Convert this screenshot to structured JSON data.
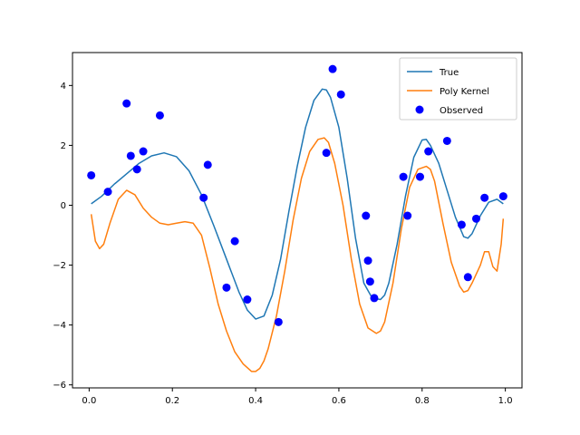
{
  "chart_data": {
    "type": "line",
    "title": "",
    "xlabel": "",
    "ylabel": "",
    "xlim": [
      -0.04,
      1.04
    ],
    "ylim": [
      -6.1,
      5.1
    ],
    "xticks": [
      0.0,
      0.2,
      0.4,
      0.6,
      0.8,
      1.0
    ],
    "xtick_labels": [
      "0.0",
      "0.2",
      "0.4",
      "0.6",
      "0.8",
      "1.0"
    ],
    "yticks": [
      -6,
      -4,
      -2,
      0,
      2,
      4
    ],
    "ytick_labels": [
      "−6",
      "−4",
      "−2",
      "0",
      "2",
      "4"
    ],
    "grid": false,
    "legend_position": "top-right",
    "series": [
      {
        "name": "True",
        "kind": "line",
        "color": "#1f77b4",
        "x": [
          0.005,
          0.03,
          0.06,
          0.09,
          0.12,
          0.15,
          0.18,
          0.21,
          0.24,
          0.27,
          0.3,
          0.33,
          0.36,
          0.38,
          0.4,
          0.42,
          0.44,
          0.46,
          0.48,
          0.5,
          0.52,
          0.54,
          0.56,
          0.57,
          0.58,
          0.6,
          0.62,
          0.64,
          0.66,
          0.68,
          0.7,
          0.71,
          0.72,
          0.74,
          0.76,
          0.78,
          0.8,
          0.81,
          0.82,
          0.84,
          0.86,
          0.88,
          0.9,
          0.91,
          0.92,
          0.94,
          0.96,
          0.98,
          0.995
        ],
        "y": [
          0.05,
          0.3,
          0.7,
          1.05,
          1.4,
          1.65,
          1.75,
          1.62,
          1.15,
          0.35,
          -0.7,
          -1.8,
          -2.9,
          -3.5,
          -3.8,
          -3.7,
          -3.0,
          -1.8,
          -0.2,
          1.3,
          2.6,
          3.5,
          3.88,
          3.85,
          3.6,
          2.6,
          0.9,
          -1.1,
          -2.6,
          -3.1,
          -3.15,
          -3.0,
          -2.6,
          -1.3,
          0.3,
          1.6,
          2.18,
          2.2,
          2.0,
          1.4,
          0.5,
          -0.4,
          -1.05,
          -1.1,
          -0.95,
          -0.35,
          0.1,
          0.2,
          0.05
        ]
      },
      {
        "name": "Poly Kernel",
        "kind": "line",
        "color": "#ff7f0e",
        "x": [
          0.005,
          0.015,
          0.025,
          0.035,
          0.05,
          0.07,
          0.09,
          0.11,
          0.13,
          0.15,
          0.17,
          0.19,
          0.21,
          0.23,
          0.25,
          0.27,
          0.29,
          0.31,
          0.33,
          0.35,
          0.37,
          0.39,
          0.4,
          0.41,
          0.42,
          0.43,
          0.45,
          0.47,
          0.49,
          0.51,
          0.53,
          0.55,
          0.565,
          0.575,
          0.59,
          0.61,
          0.63,
          0.65,
          0.67,
          0.69,
          0.7,
          0.71,
          0.73,
          0.75,
          0.77,
          0.79,
          0.81,
          0.82,
          0.83,
          0.85,
          0.87,
          0.89,
          0.9,
          0.91,
          0.92,
          0.94,
          0.95,
          0.96,
          0.97,
          0.98,
          0.99,
          0.995
        ],
        "y": [
          -0.3,
          -1.2,
          -1.45,
          -1.3,
          -0.6,
          0.2,
          0.5,
          0.35,
          -0.1,
          -0.4,
          -0.6,
          -0.65,
          -0.6,
          -0.55,
          -0.6,
          -1.0,
          -2.1,
          -3.3,
          -4.2,
          -4.9,
          -5.3,
          -5.55,
          -5.55,
          -5.45,
          -5.2,
          -4.8,
          -3.7,
          -2.2,
          -0.5,
          0.9,
          1.8,
          2.2,
          2.25,
          2.1,
          1.4,
          0.0,
          -1.8,
          -3.3,
          -4.1,
          -4.28,
          -4.2,
          -3.9,
          -2.6,
          -0.8,
          0.6,
          1.2,
          1.3,
          1.2,
          0.8,
          -0.6,
          -1.9,
          -2.7,
          -2.9,
          -2.85,
          -2.6,
          -2.0,
          -1.55,
          -1.55,
          -2.05,
          -2.2,
          -1.3,
          -0.45
        ]
      },
      {
        "name": "Observed",
        "kind": "scatter",
        "color": "#0000ff",
        "x": [
          0.005,
          0.045,
          0.09,
          0.1,
          0.115,
          0.13,
          0.17,
          0.275,
          0.285,
          0.33,
          0.35,
          0.38,
          0.455,
          0.57,
          0.585,
          0.605,
          0.665,
          0.67,
          0.675,
          0.685,
          0.755,
          0.765,
          0.795,
          0.815,
          0.86,
          0.895,
          0.91,
          0.93,
          0.95,
          0.995
        ],
        "y": [
          1.0,
          0.45,
          3.4,
          1.65,
          1.2,
          1.8,
          3.0,
          0.25,
          1.35,
          -2.75,
          -1.2,
          -3.15,
          -3.9,
          1.75,
          4.55,
          3.7,
          -0.35,
          -1.85,
          -2.55,
          -3.1,
          0.95,
          -0.35,
          0.95,
          1.8,
          2.15,
          -0.65,
          -2.4,
          -0.45,
          0.25,
          0.3
        ]
      }
    ]
  }
}
